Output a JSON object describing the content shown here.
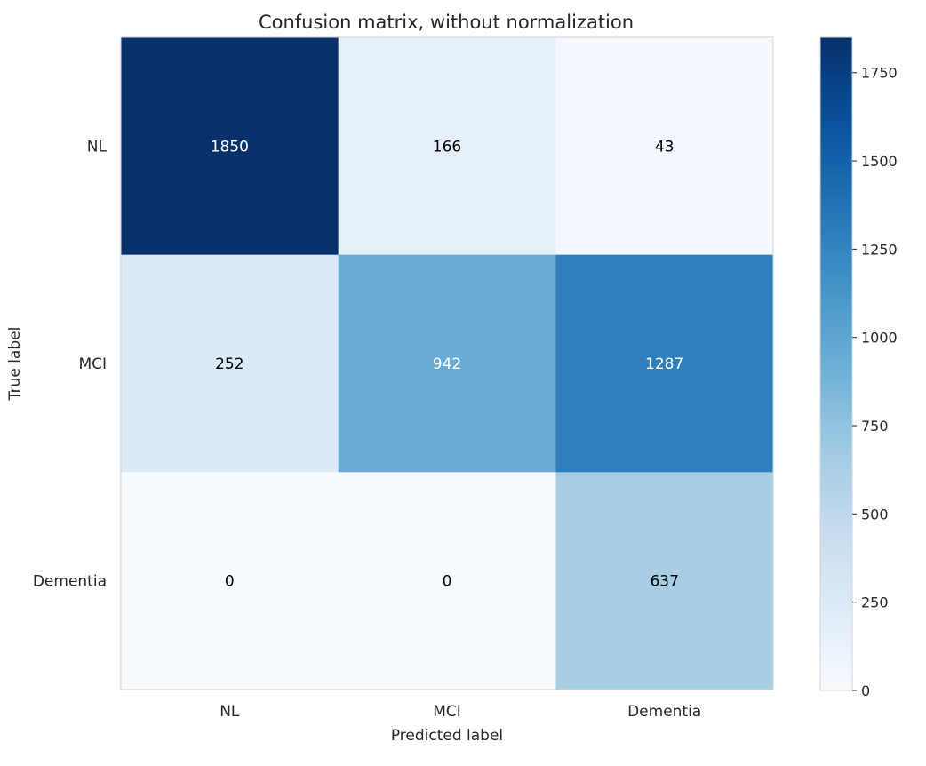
{
  "chart_data": {
    "type": "heatmap",
    "title": "Confusion matrix, without normalization",
    "xlabel": "Predicted label",
    "ylabel": "True label",
    "x_categories": [
      "NL",
      "MCI",
      "Dementia"
    ],
    "y_categories": [
      "NL",
      "MCI",
      "Dementia"
    ],
    "values": [
      [
        1850,
        166,
        43
      ],
      [
        252,
        942,
        1287
      ],
      [
        0,
        0,
        637
      ]
    ],
    "colormap": "Blues",
    "color_range": [
      0,
      1850
    ],
    "colorbar_ticks": [
      0,
      250,
      500,
      750,
      1000,
      1250,
      1500,
      1750
    ],
    "grid": false,
    "cell_text_colors": {
      "light": "#ffffff",
      "dark": "#000000"
    }
  }
}
